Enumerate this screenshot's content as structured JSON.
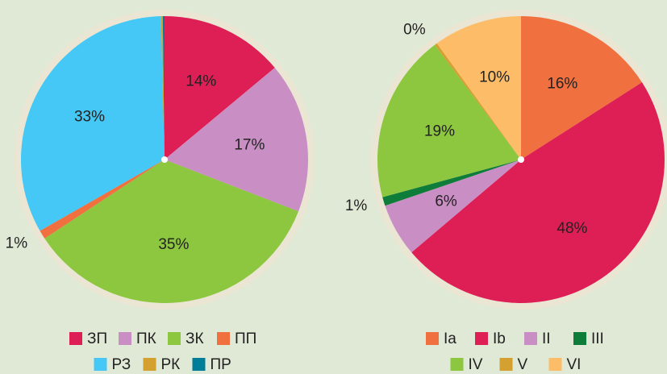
{
  "chart_data": [
    {
      "type": "pie",
      "categories": [
        "ЗП",
        "ПК",
        "ЗК",
        "ПП",
        "РЗ",
        "РК",
        "ПР"
      ],
      "values": [
        14,
        17,
        35,
        1,
        33,
        0.2,
        0.2
      ],
      "value_labels": [
        "14%",
        "17%",
        "35%",
        "1%",
        "33%",
        null,
        null
      ],
      "colors": [
        "#dd1f55",
        "#c98fc4",
        "#8dc63f",
        "#f07040",
        "#45c8f5",
        "#d4a030",
        "#007d99"
      ]
    },
    {
      "type": "pie",
      "categories": [
        "Ia",
        "Ib",
        "II",
        "III",
        "IV",
        "V",
        "VI"
      ],
      "values": [
        16,
        48,
        6,
        1,
        19,
        0.3,
        10
      ],
      "value_labels": [
        "16%",
        "48%",
        "6%",
        "1%",
        "19%",
        "0%",
        "10%"
      ],
      "colors": [
        "#f07040",
        "#dd1f55",
        "#c98fc4",
        "#0e7d3a",
        "#8dc63f",
        "#d4a030",
        "#fdbd68"
      ]
    }
  ]
}
